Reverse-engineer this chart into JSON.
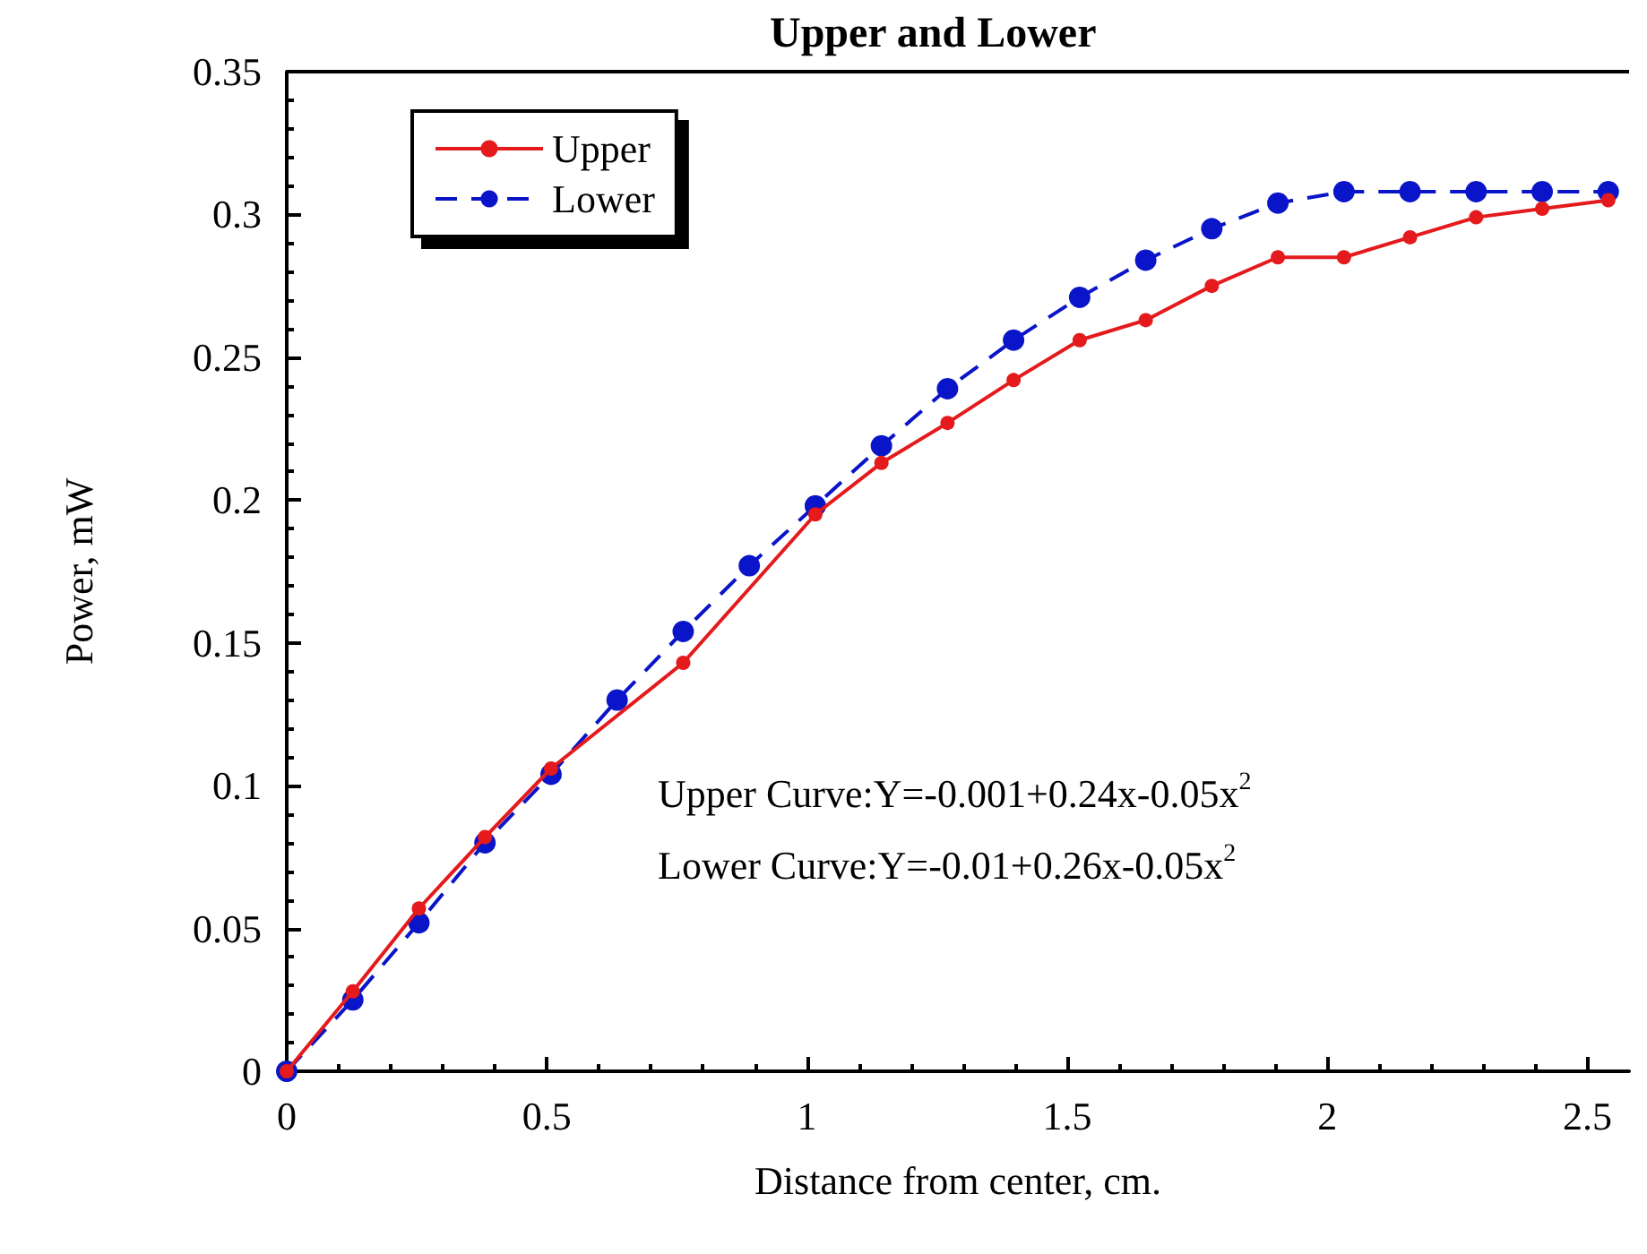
{
  "chart_data": {
    "type": "line",
    "title": "Upper and Lower",
    "xlabel": "Distance from center, cm.",
    "ylabel": "Power, mW",
    "x": [
      0,
      0.127,
      0.254,
      0.381,
      0.508,
      0.635,
      0.762,
      0.889,
      1.016,
      1.143,
      1.27,
      1.397,
      1.524,
      1.651,
      1.778,
      1.905,
      2.032,
      2.159,
      2.286,
      2.413,
      2.54
    ],
    "series": [
      {
        "name": "Upper",
        "color": "#e41a1c",
        "line_style": "solid",
        "values": [
          0,
          0.028,
          0.057,
          0.082,
          0.106,
          null,
          0.143,
          null,
          0.195,
          0.213,
          0.227,
          0.242,
          0.256,
          0.263,
          0.275,
          0.285,
          0.285,
          0.292,
          0.299,
          0.302,
          0.305
        ]
      },
      {
        "name": "Lower",
        "color": "#0a14c8",
        "line_style": "dashed",
        "values": [
          0,
          0.025,
          0.052,
          0.08,
          0.104,
          0.13,
          0.154,
          0.177,
          0.198,
          0.219,
          0.239,
          0.256,
          0.271,
          0.284,
          0.295,
          0.304,
          0.308,
          0.308,
          0.308,
          0.308,
          0.308
        ]
      }
    ],
    "xlim": [
      0,
      2.58
    ],
    "xticks": [
      0,
      0.5,
      1,
      1.5,
      2,
      2.5
    ],
    "ylim": [
      0,
      0.35
    ],
    "yticks": [
      0,
      0.05,
      0.1,
      0.15,
      0.2,
      0.25,
      0.3,
      0.35
    ],
    "grid": false,
    "legend": "top left",
    "marker": "circle",
    "annotations": [
      "Upper Curve:Y=-0.001+0.24x-0.05x$^{2}$",
      "Lower Curve:Y=-0.01+0.26x-0.05x$^{2}$"
    ]
  }
}
